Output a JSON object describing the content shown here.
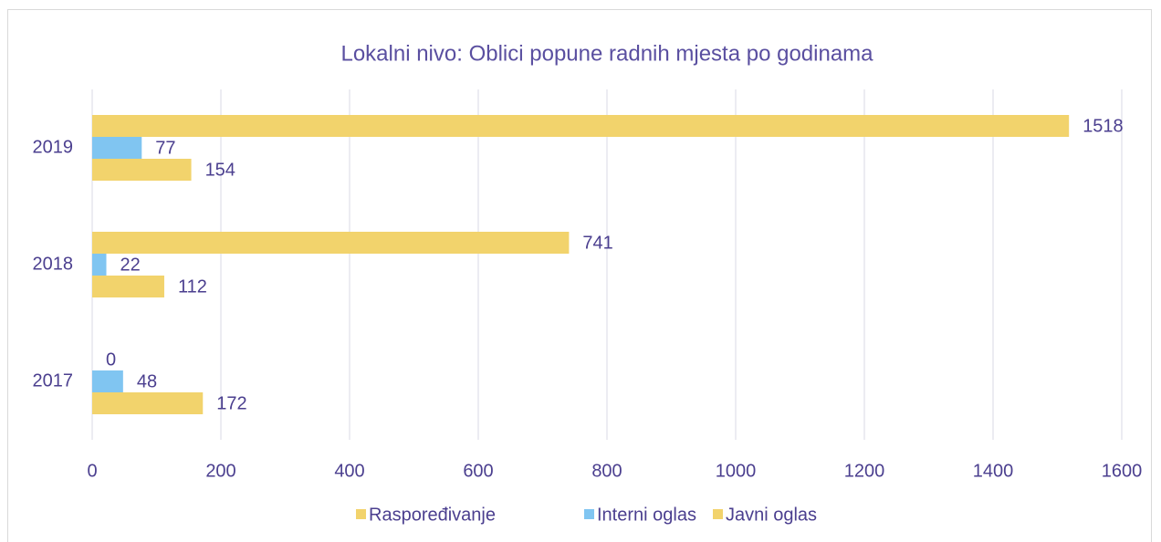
{
  "chart_data": {
    "type": "bar",
    "orientation": "horizontal",
    "title": "Lokalni nivo: Oblici popune radnih mjesta po godinama",
    "categories": [
      "2017",
      "2018",
      "2019"
    ],
    "series": [
      {
        "name": "Raspoređivanje",
        "color": "#f2d36c",
        "values": [
          0,
          741,
          1518
        ]
      },
      {
        "name": "Interni oglas",
        "color": "#80c5f1",
        "values": [
          48,
          22,
          77
        ]
      },
      {
        "name": "Javni oglas",
        "color": "#f2d36c",
        "values": [
          172,
          112,
          154
        ]
      }
    ],
    "xlim": [
      0,
      1600
    ],
    "xticks": [
      0,
      200,
      400,
      600,
      800,
      1000,
      1200,
      1400,
      1600
    ],
    "grid": true,
    "legend": "bottom"
  }
}
